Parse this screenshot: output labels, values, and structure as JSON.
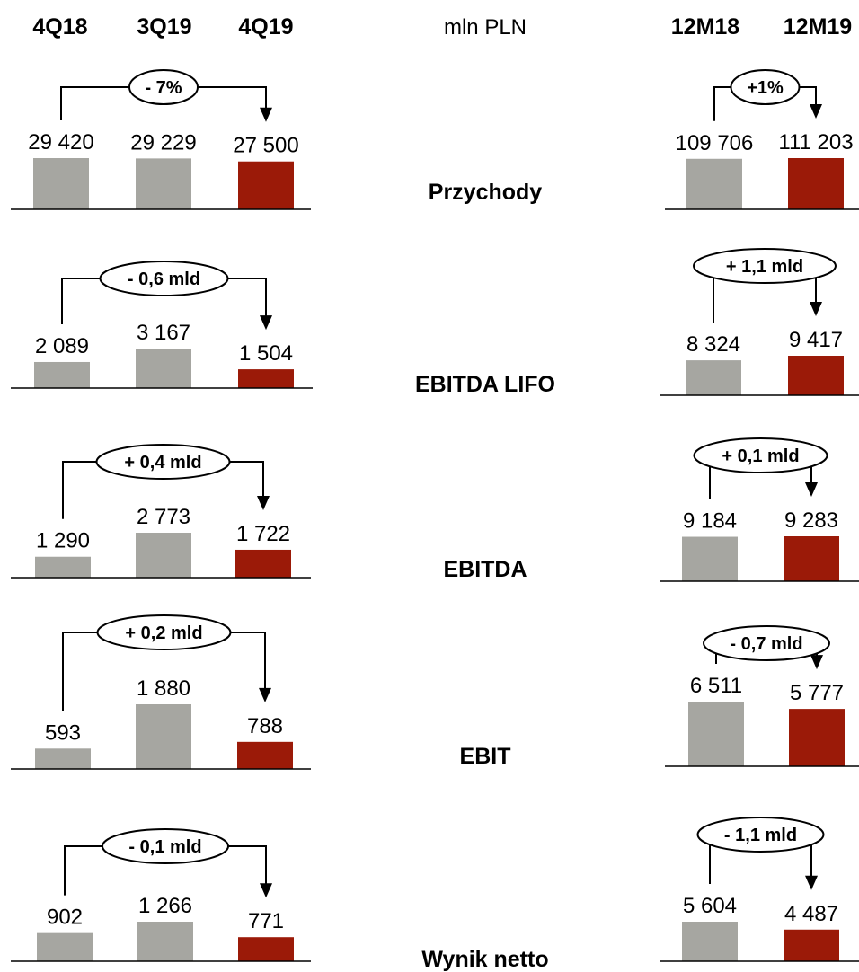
{
  "unit_label": "mln PLN",
  "colors": {
    "prior": "#a6a6a1",
    "current": "#9b1a08",
    "line": "#000000"
  },
  "chart_data": [
    {
      "type": "bar",
      "title": "Przychody",
      "categories": [
        "4Q18",
        "3Q19",
        "4Q19"
      ],
      "values": [
        29420,
        29229,
        27500
      ],
      "labels": [
        "29 420",
        "29 229",
        "27 500"
      ],
      "change": "- 7%",
      "compare": [
        0,
        2
      ]
    },
    {
      "type": "bar",
      "title": "Przychody",
      "categories": [
        "12M18",
        "12M19"
      ],
      "values": [
        109706,
        111203
      ],
      "labels": [
        "109 706",
        "111 203"
      ],
      "change": "+1%",
      "compare": [
        0,
        1
      ]
    },
    {
      "type": "bar",
      "title": "EBITDA LIFO",
      "categories": [
        "4Q18",
        "3Q19",
        "4Q19"
      ],
      "values": [
        2089,
        3167,
        1504
      ],
      "labels": [
        "2 089",
        "3 167",
        "1 504"
      ],
      "change": "- 0,6 mld",
      "compare": [
        0,
        2
      ]
    },
    {
      "type": "bar",
      "title": "EBITDA LIFO",
      "categories": [
        "12M18",
        "12M19"
      ],
      "values": [
        8324,
        9417
      ],
      "labels": [
        "8 324",
        "9 417"
      ],
      "change": "+ 1,1 mld",
      "compare": [
        0,
        1
      ]
    },
    {
      "type": "bar",
      "title": "EBITDA",
      "categories": [
        "4Q18",
        "3Q19",
        "4Q19"
      ],
      "values": [
        1290,
        2773,
        1722
      ],
      "labels": [
        "1 290",
        "2 773",
        "1 722"
      ],
      "change": "+ 0,4 mld",
      "compare": [
        0,
        2
      ]
    },
    {
      "type": "bar",
      "title": "EBITDA",
      "categories": [
        "12M18",
        "12M19"
      ],
      "values": [
        9184,
        9283
      ],
      "labels": [
        "9 184",
        "9 283"
      ],
      "change": "+ 0,1 mld",
      "compare": [
        0,
        1
      ]
    },
    {
      "type": "bar",
      "title": "EBIT",
      "categories": [
        "4Q18",
        "3Q19",
        "4Q19"
      ],
      "values": [
        593,
        1880,
        788
      ],
      "labels": [
        "593",
        "1 880",
        "788"
      ],
      "change": "+ 0,2 mld",
      "compare": [
        0,
        2
      ]
    },
    {
      "type": "bar",
      "title": "EBIT",
      "categories": [
        "12M18",
        "12M19"
      ],
      "values": [
        6511,
        5777
      ],
      "labels": [
        "6 511",
        "5 777"
      ],
      "change": "- 0,7 mld",
      "compare": [
        0,
        1
      ]
    },
    {
      "type": "bar",
      "title": "Wynik netto",
      "categories": [
        "4Q18",
        "3Q19",
        "4Q19"
      ],
      "values": [
        902,
        1266,
        771
      ],
      "labels": [
        "902",
        "1 266",
        "771"
      ],
      "change": "- 0,1 mld",
      "compare": [
        0,
        2
      ]
    },
    {
      "type": "bar",
      "title": "Wynik netto",
      "categories": [
        "12M18",
        "12M19"
      ],
      "values": [
        5604,
        4487
      ],
      "labels": [
        "5 604",
        "4 487"
      ],
      "change": "- 1,1 mld",
      "compare": [
        0,
        1
      ]
    }
  ]
}
